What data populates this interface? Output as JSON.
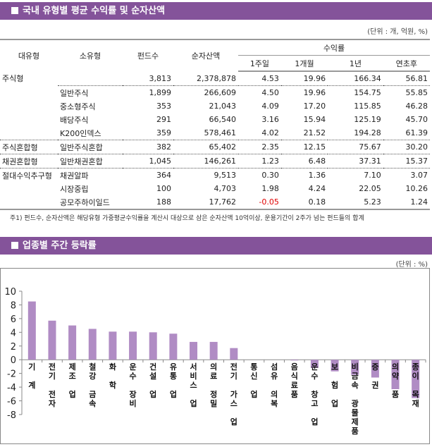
{
  "section1": {
    "title": "국내 유형별 평균 수익률 및 순자산액",
    "unit": "(단위 : 개, 억원, %)"
  },
  "table": {
    "headers": {
      "major": "대유형",
      "minor": "소유형",
      "funds": "펀드수",
      "nav": "순자산액",
      "returns": "수익률",
      "w1": "1주일",
      "m1": "1개월",
      "y1": "1년",
      "ytd": "연초후"
    },
    "rows": [
      [
        "주식형",
        "",
        "3,813",
        "2,378,878",
        "4.53",
        "19.96",
        "166.34",
        "56.81"
      ],
      [
        "",
        "일반주식",
        "1,899",
        "266,609",
        "4.50",
        "19.96",
        "154.75",
        "55.85"
      ],
      [
        "",
        "중소형주식",
        "353",
        "21,043",
        "4.09",
        "17.20",
        "115.85",
        "46.28"
      ],
      [
        "",
        "배당주식",
        "291",
        "66,540",
        "3.16",
        "15.94",
        "125.19",
        "45.70"
      ],
      [
        "",
        "K200인덱스",
        "359",
        "578,461",
        "4.02",
        "21.52",
        "194.28",
        "61.39"
      ],
      [
        "주식혼합형",
        "일반주식혼합",
        "382",
        "65,402",
        "2.35",
        "12.15",
        "75.67",
        "30.20"
      ],
      [
        "채권혼합형",
        "일반채권혼합",
        "1,045",
        "146,261",
        "1.23",
        "6.48",
        "37.31",
        "15.37"
      ],
      [
        "절대수익추구형",
        "채권알파",
        "364",
        "9,513",
        "0.30",
        "1.36",
        "7.10",
        "3.07"
      ],
      [
        "",
        "시장중립",
        "100",
        "4,703",
        "1.98",
        "4.24",
        "22.05",
        "10.26"
      ],
      [
        "",
        "공모주하이일드",
        "188",
        "17,762",
        "-0.05",
        "0.18",
        "5.23",
        "1.24"
      ]
    ],
    "note": "주1) 펀드수, 순자산액은 해당유형 가중평균수익률을 계산시 대상으로 삼은 순자산액 10억이상, 운용기간이 2주가 넘는 펀드들의 합계"
  },
  "section2": {
    "title": "업종별 주간 등락률",
    "unit": "(단위 : %)"
  },
  "colors": {
    "header": "#84539a",
    "bar": "#b08cc4",
    "negative": "#e00000"
  },
  "chart_data": {
    "type": "bar",
    "categories": [
      "기계",
      "전기전자",
      "제조업",
      "철강금속",
      "화학",
      "운수장비",
      "건설업",
      "유통업",
      "서비스업",
      "의료정밀",
      "전기가스업",
      "통신업",
      "섬유의복",
      "음식료품",
      "운수창고업",
      "보험업",
      "비금속광물제품",
      "증권",
      "의약품",
      "종이목재"
    ],
    "category_labels": [
      "기 계",
      "전기 전자",
      "제조 업",
      "철강 금속",
      "화 학",
      "운수 장비",
      "건설 업",
      "유통 업",
      "서비스 업",
      "의료 정밀",
      "전기 가스 업",
      "통신 업",
      "섬유 의복",
      "음식료품",
      "운수 창고 업",
      "보 험 업",
      "비금속 광물제품",
      "증 권",
      "의약 품",
      "종이 목재"
    ],
    "values": [
      8.5,
      5.7,
      5.0,
      4.5,
      4.1,
      4.1,
      4.0,
      3.8,
      2.6,
      2.6,
      1.7,
      0.0,
      0.0,
      -0.1,
      -1.2,
      -1.7,
      -2.2,
      -2.6,
      -4.3,
      -5.6
    ],
    "ylim": [
      -8,
      10
    ],
    "yticks": [
      "10",
      "8",
      "6",
      "4",
      "2",
      "0",
      "-2",
      "-4",
      "-6",
      "-8"
    ],
    "grid": false
  }
}
